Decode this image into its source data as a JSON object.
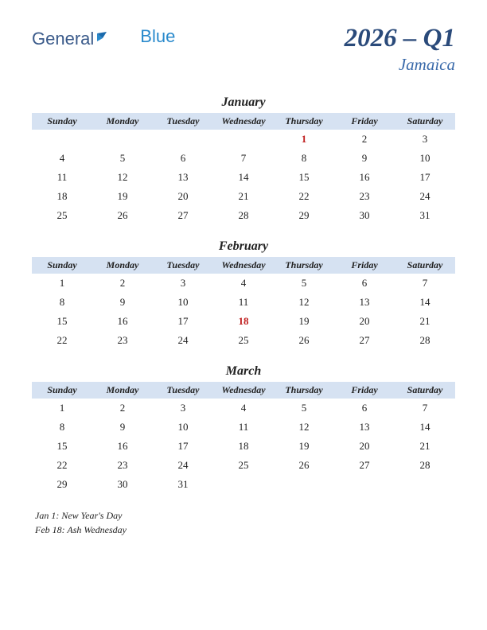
{
  "logo": {
    "part1": "General",
    "part2": "Blue"
  },
  "title": "2026 – Q1",
  "subtitle": "Jamaica",
  "colors": {
    "header_bg": "#d6e2f2",
    "title_color": "#2a4a7a",
    "subtitle_color": "#3a6aaa",
    "holiday_color": "#c02020",
    "text_color": "#222222",
    "background": "#ffffff"
  },
  "typography": {
    "title_fontsize": 33,
    "subtitle_fontsize": 21,
    "month_fontsize": 16,
    "dayheader_fontsize": 12,
    "cell_fontsize": 13,
    "holiday_list_fontsize": 12,
    "font_family": "Georgia serif",
    "italic": true
  },
  "day_headers": [
    "Sunday",
    "Monday",
    "Tuesday",
    "Wednesday",
    "Thursday",
    "Friday",
    "Saturday"
  ],
  "months": [
    {
      "name": "January",
      "weeks": [
        [
          "",
          "",
          "",
          "",
          "1",
          "2",
          "3"
        ],
        [
          "4",
          "5",
          "6",
          "7",
          "8",
          "9",
          "10"
        ],
        [
          "11",
          "12",
          "13",
          "14",
          "15",
          "16",
          "17"
        ],
        [
          "18",
          "19",
          "20",
          "21",
          "22",
          "23",
          "24"
        ],
        [
          "25",
          "26",
          "27",
          "28",
          "29",
          "30",
          "31"
        ]
      ],
      "holidays": [
        "1"
      ]
    },
    {
      "name": "February",
      "weeks": [
        [
          "1",
          "2",
          "3",
          "4",
          "5",
          "6",
          "7"
        ],
        [
          "8",
          "9",
          "10",
          "11",
          "12",
          "13",
          "14"
        ],
        [
          "15",
          "16",
          "17",
          "18",
          "19",
          "20",
          "21"
        ],
        [
          "22",
          "23",
          "24",
          "25",
          "26",
          "27",
          "28"
        ]
      ],
      "holidays": [
        "18"
      ]
    },
    {
      "name": "March",
      "weeks": [
        [
          "1",
          "2",
          "3",
          "4",
          "5",
          "6",
          "7"
        ],
        [
          "8",
          "9",
          "10",
          "11",
          "12",
          "13",
          "14"
        ],
        [
          "15",
          "16",
          "17",
          "18",
          "19",
          "20",
          "21"
        ],
        [
          "22",
          "23",
          "24",
          "25",
          "26",
          "27",
          "28"
        ],
        [
          "29",
          "30",
          "31",
          "",
          "",
          "",
          ""
        ]
      ],
      "holidays": []
    }
  ],
  "holiday_list": [
    "Jan 1: New Year's Day",
    "Feb 18: Ash Wednesday"
  ]
}
